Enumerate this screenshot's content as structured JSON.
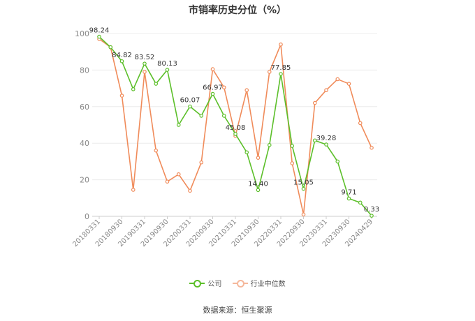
{
  "chart_data": {
    "type": "line",
    "title": "市销率历史分位（%）",
    "x_tick_labels": [
      "20180331",
      "20180930",
      "20190331",
      "20190930",
      "20200331",
      "20200930",
      "20210331",
      "20210930",
      "20220331",
      "20220930",
      "20230331",
      "20230930",
      "20240429"
    ],
    "ylim": [
      0,
      100
    ],
    "y_ticks": [
      0,
      20,
      40,
      60,
      80,
      100
    ],
    "grid": true,
    "legend_position": "bottom",
    "series": [
      {
        "name": "公司",
        "color": "#5cbf2a",
        "values": [
          98.24,
          92.5,
          84.82,
          69.5,
          83.52,
          72.5,
          80.13,
          50.0,
          60.07,
          55.0,
          66.97,
          55.0,
          45.08,
          35.0,
          14.4,
          39.0,
          77.85,
          38.5,
          15.05,
          41.5,
          39.28,
          30.0,
          9.71,
          7.5,
          0.33
        ],
        "labels": {
          "0": "98.24",
          "2": "84.82",
          "4": "83.52",
          "6": "80.13",
          "8": "60.07",
          "10": "66.97",
          "12": "45.08",
          "14": "14.40",
          "16": "77.85",
          "18": "15.05",
          "20": "39.28",
          "22": "9.71",
          "24": "0.33"
        }
      },
      {
        "name": "行业中位数",
        "color": "#f08b5a",
        "values": [
          97.0,
          92.5,
          66.0,
          14.5,
          79.0,
          36.0,
          19.0,
          23.0,
          14.0,
          29.5,
          80.5,
          70.5,
          44.0,
          69.0,
          32.0,
          79.0,
          94.0,
          29.0,
          1.0,
          62.0,
          69.0,
          75.0,
          72.5,
          51.0,
          37.5
        ]
      }
    ]
  },
  "source": "数据来源：恒生聚源"
}
